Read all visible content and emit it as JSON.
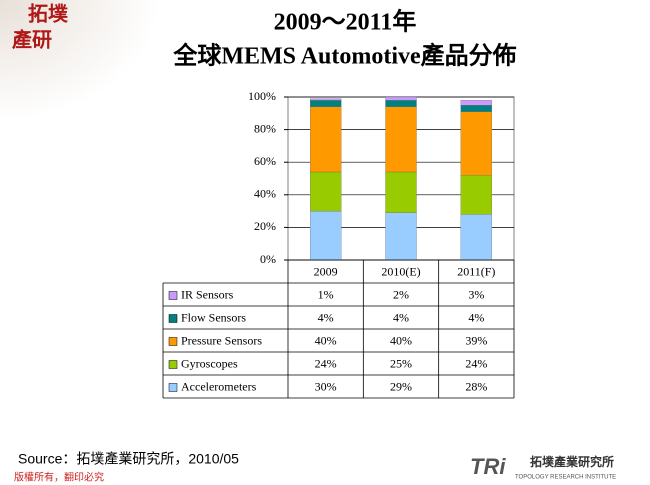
{
  "chart_data": {
    "type": "stacked-bar",
    "title": "2009～2011年",
    "subtitle": "全球MEMS Automotive產品分佈",
    "categories": [
      "2009",
      "2010(E)",
      "2011(F)"
    ],
    "series": [
      {
        "name": "Accelerometers",
        "color": "#99ccff",
        "values": [
          30,
          29,
          28
        ],
        "value_labels": [
          "30%",
          "29%",
          "28%"
        ]
      },
      {
        "name": "Gyroscopes",
        "color": "#99cc00",
        "values": [
          24,
          25,
          24
        ],
        "value_labels": [
          "24%",
          "25%",
          "24%"
        ]
      },
      {
        "name": "Pressure Sensors",
        "color": "#ff9900",
        "values": [
          40,
          40,
          39
        ],
        "value_labels": [
          "40%",
          "40%",
          "39%"
        ]
      },
      {
        "name": "Flow Sensors",
        "color": "#008080",
        "values": [
          4,
          4,
          4
        ],
        "value_labels": [
          "4%",
          "4%",
          "4%"
        ]
      },
      {
        "name": "IR Sensors",
        "color": "#cc99ff",
        "values": [
          1,
          2,
          3
        ],
        "value_labels": [
          "1%",
          "2%",
          "3%"
        ]
      }
    ],
    "ylim": [
      0,
      100
    ],
    "yticks": [
      {
        "value": 0,
        "label": "0%"
      },
      {
        "value": 20,
        "label": "20%"
      },
      {
        "value": 40,
        "label": "40%"
      },
      {
        "value": 60,
        "label": "60%"
      },
      {
        "value": 80,
        "label": "80%"
      },
      {
        "value": 100,
        "label": "100%"
      }
    ],
    "grid": true
  },
  "source": "Source：拓墣產業研究所，2010/05",
  "copyright": "版權所有，翻印必究",
  "logo_top": [
    "拓墣",
    "產研"
  ],
  "logo_bottom": {
    "mark": "TRi",
    "name": "拓墣產業研究所",
    "english": "TOPOLOGY RESEARCH INSTITUTE"
  }
}
